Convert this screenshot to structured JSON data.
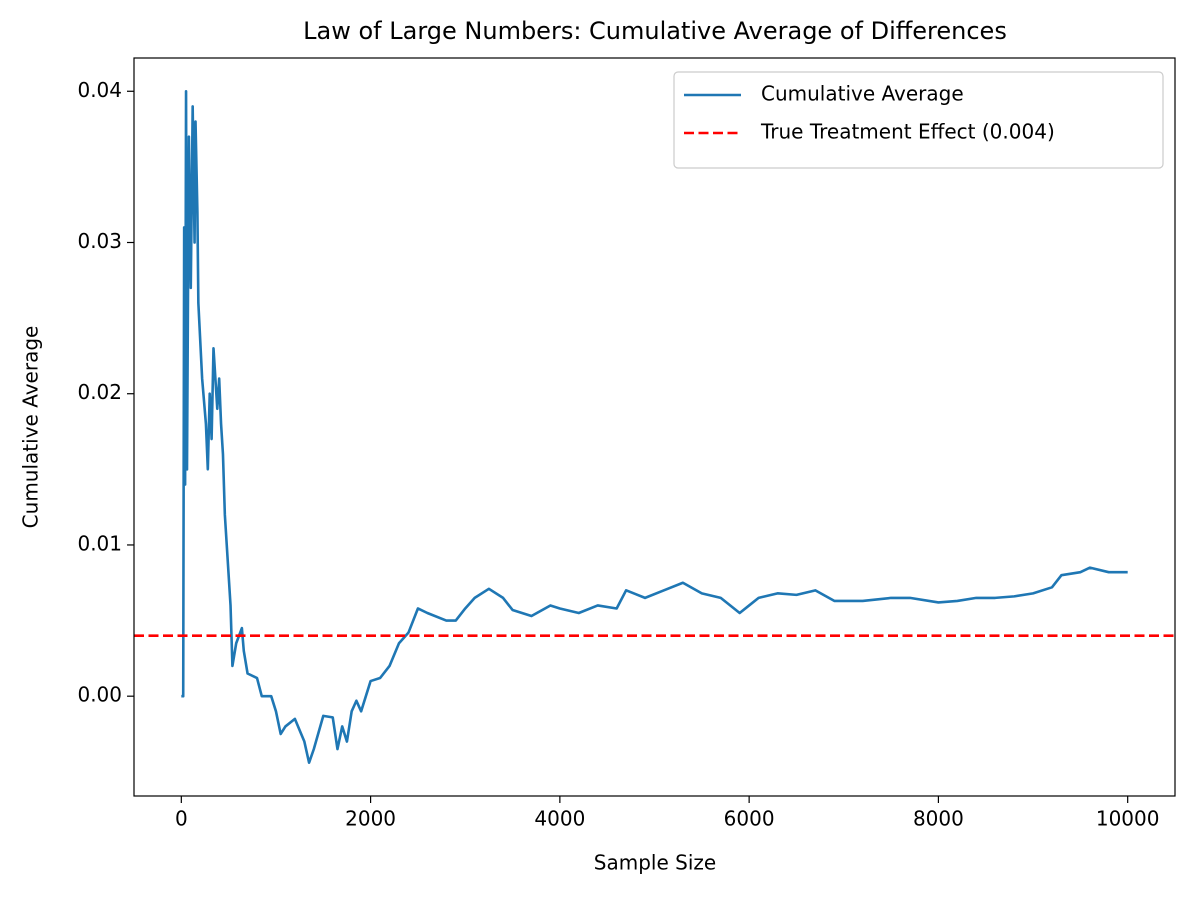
{
  "chart_data": {
    "type": "line",
    "title": "Law of Large Numbers: Cumulative Average of Differences",
    "x_label": "Sample Size",
    "y_label": "Cumulative Average",
    "x": [
      0,
      20,
      30,
      40,
      50,
      60,
      80,
      100,
      120,
      140,
      150,
      170,
      180,
      220,
      260,
      280,
      300,
      320,
      340,
      380,
      400,
      420,
      440,
      460,
      480,
      500,
      520,
      540,
      580,
      640,
      660,
      700,
      800,
      850,
      950,
      1000,
      1050,
      1100,
      1200,
      1300,
      1350,
      1400,
      1500,
      1600,
      1650,
      1700,
      1750,
      1800,
      1850,
      1900,
      2000,
      2100,
      2200,
      2300,
      2400,
      2500,
      2600,
      2800,
      2900,
      3000,
      3100,
      3250,
      3400,
      3500,
      3700,
      3900,
      4000,
      4200,
      4400,
      4600,
      4700,
      4900,
      5100,
      5300,
      5500,
      5700,
      5900,
      6000,
      6100,
      6300,
      6500,
      6700,
      6900,
      7200,
      7500,
      7700,
      8000,
      8200,
      8400,
      8600,
      8800,
      9000,
      9200,
      9300,
      9500,
      9600,
      9800,
      10000
    ],
    "series": [
      {
        "name": "Cumulative Average",
        "color": "#1f77b4",
        "values": [
          0.0,
          0.0,
          0.031,
          0.014,
          0.04,
          0.015,
          0.037,
          0.027,
          0.039,
          0.03,
          0.038,
          0.032,
          0.026,
          0.021,
          0.018,
          0.015,
          0.02,
          0.017,
          0.023,
          0.019,
          0.021,
          0.018,
          0.016,
          0.012,
          0.01,
          0.008,
          0.006,
          0.002,
          0.0035,
          0.0045,
          0.003,
          0.0015,
          0.0012,
          0.0,
          0.0,
          -0.001,
          -0.0025,
          -0.002,
          -0.0015,
          -0.003,
          -0.0044,
          -0.0035,
          -0.0013,
          -0.0014,
          -0.0035,
          -0.002,
          -0.003,
          -0.001,
          -0.0003,
          -0.001,
          0.001,
          0.0012,
          0.002,
          0.0035,
          0.0042,
          0.0058,
          0.0055,
          0.005,
          0.005,
          0.0058,
          0.0065,
          0.0071,
          0.0065,
          0.0057,
          0.0053,
          0.006,
          0.0058,
          0.0055,
          0.006,
          0.0058,
          0.007,
          0.0065,
          0.007,
          0.0075,
          0.0068,
          0.0065,
          0.0055,
          0.006,
          0.0065,
          0.0068,
          0.0067,
          0.007,
          0.0063,
          0.0063,
          0.0065,
          0.0065,
          0.0062,
          0.0063,
          0.0065,
          0.0065,
          0.0066,
          0.0068,
          0.0072,
          0.008,
          0.0082,
          0.0085,
          0.0082,
          0.0082
        ]
      }
    ],
    "hlines": [
      {
        "name": "True Treatment Effect (0.004)",
        "value": 0.004,
        "color": "#ff0000",
        "style": "dashed"
      }
    ],
    "xlim": [
      -500,
      10500
    ],
    "xticks": [
      0,
      2000,
      4000,
      6000,
      8000,
      10000
    ],
    "ylim": [
      -0.0066,
      0.0422
    ],
    "yticks": [
      {
        "value": 0,
        "label": "0.00"
      },
      {
        "value": 0.01,
        "label": "0.01"
      },
      {
        "value": 0.02,
        "label": "0.02"
      },
      {
        "value": 0.03,
        "label": "0.03"
      },
      {
        "value": 0.04,
        "label": "0.04"
      }
    ],
    "legend": "upper right",
    "grid": false
  }
}
